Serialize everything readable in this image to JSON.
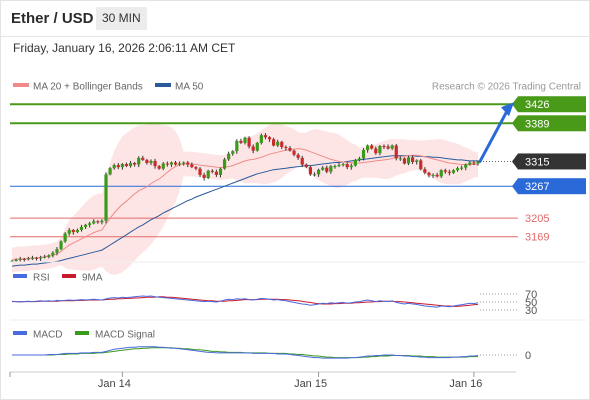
{
  "header": {
    "title": "Ether / USD",
    "interval": "30 MIN",
    "timestamp": "Friday, January 16, 2026 2:06:11 AM CET"
  },
  "legend": {
    "ma20_label": "MA 20 + Bollinger Bands",
    "ma50_label": "MA 50",
    "credit": "Research © 2026 Trading Central",
    "rsi_label": "RSI",
    "rsi_ma_label": "9MA",
    "macd_label": "MACD",
    "macd_signal_label": "MACD Signal"
  },
  "colors": {
    "ma20": "#f08a8a",
    "ma50": "#2a5a9a",
    "bollinger_fill": "#fde0e0",
    "resistance": "#4a9a1a",
    "pivot": "#2a6ad8",
    "support": "#e36a6a",
    "current": "#333333",
    "rsi": "#4a6ae0",
    "rsi_ma": "#c81a2a",
    "macd": "#4a6ae0",
    "macd_signal": "#3a9a1a",
    "candle_up": "#3a9a1a",
    "candle_down": "#c82a2a"
  },
  "chart_data": [
    {
      "type": "candlestick",
      "title": "Ether / USD",
      "x_tick_labels": [
        "Jan 14",
        "Jan 15",
        "Jan 16"
      ],
      "levels": [
        {
          "value": 3426,
          "label": "3426",
          "kind": "resistance"
        },
        {
          "value": 3389,
          "label": "3389",
          "kind": "resistance"
        },
        {
          "value": 3315,
          "label": "3315",
          "kind": "current"
        },
        {
          "value": 3267,
          "label": "3267",
          "kind": "pivot"
        },
        {
          "value": 3205,
          "label": "3205",
          "kind": "support"
        },
        {
          "value": 3169,
          "label": "3169",
          "kind": "support"
        }
      ],
      "forecast_arrow": {
        "from": 3315,
        "to": 3426,
        "direction": "up"
      },
      "ylim": [
        3120,
        3440
      ],
      "close": [
        3122,
        3124,
        3126,
        3125,
        3127,
        3128,
        3127,
        3129,
        3130,
        3133,
        3138,
        3145,
        3160,
        3175,
        3182,
        3178,
        3182,
        3188,
        3192,
        3195,
        3199,
        3197,
        3200,
        3290,
        3302,
        3308,
        3304,
        3310,
        3306,
        3312,
        3309,
        3322,
        3318,
        3312,
        3316,
        3306,
        3301,
        3311,
        3309,
        3313,
        3309,
        3311,
        3313,
        3309,
        3304,
        3301,
        3289,
        3283,
        3297,
        3295,
        3289,
        3301,
        3319,
        3330,
        3335,
        3355,
        3351,
        3361,
        3344,
        3336,
        3351,
        3366,
        3362,
        3358,
        3346,
        3353,
        3343,
        3341,
        3336,
        3328,
        3322,
        3309,
        3304,
        3290,
        3290,
        3299,
        3303,
        3295,
        3306,
        3306,
        3308,
        3310,
        3304,
        3307,
        3318,
        3321,
        3337,
        3346,
        3340,
        3331,
        3345,
        3344,
        3340,
        3346,
        3321,
        3321,
        3311,
        3323,
        3314,
        3317,
        3300,
        3293,
        3288,
        3289,
        3286,
        3298,
        3295,
        3293,
        3298,
        3302,
        3303,
        3309,
        3313,
        3311,
        3315
      ],
      "ma20": [
        3124,
        3125,
        3126,
        3126,
        3127,
        3128,
        3128,
        3129,
        3130,
        3131,
        3133,
        3136,
        3141,
        3147,
        3153,
        3157,
        3161,
        3165,
        3169,
        3173,
        3177,
        3180,
        3182,
        3194,
        3205,
        3215,
        3224,
        3232,
        3238,
        3245,
        3252,
        3258,
        3262,
        3266,
        3272,
        3277,
        3281,
        3287,
        3294,
        3300,
        3305,
        3309,
        3310,
        3310,
        3310,
        3309,
        3308,
        3307,
        3306,
        3305,
        3304,
        3303,
        3304,
        3305,
        3307,
        3310,
        3313,
        3316,
        3318,
        3319,
        3321,
        3323,
        3326,
        3329,
        3331,
        3333,
        3335,
        3337,
        3338,
        3339,
        3340,
        3339,
        3337,
        3334,
        3331,
        3328,
        3325,
        3322,
        3319,
        3317,
        3315,
        3314,
        3313,
        3313,
        3312,
        3312,
        3313,
        3314,
        3315,
        3316,
        3317,
        3318,
        3319,
        3321,
        3323,
        3324,
        3325,
        3326,
        3327,
        3327,
        3326,
        3324,
        3322,
        3320,
        3318,
        3316,
        3314,
        3312,
        3311,
        3310,
        3309,
        3309,
        3309,
        3309,
        3309
      ],
      "ma50": [
        3112,
        3113,
        3114,
        3114,
        3115,
        3116,
        3116,
        3117,
        3118,
        3119,
        3120,
        3121,
        3123,
        3125,
        3127,
        3129,
        3131,
        3133,
        3135,
        3137,
        3139,
        3141,
        3143,
        3148,
        3153,
        3158,
        3163,
        3168,
        3173,
        3178,
        3183,
        3188,
        3192,
        3197,
        3202,
        3206,
        3210,
        3215,
        3219,
        3223,
        3227,
        3231,
        3235,
        3239,
        3242,
        3246,
        3249,
        3252,
        3255,
        3258,
        3261,
        3264,
        3267,
        3270,
        3273,
        3276,
        3279,
        3282,
        3285,
        3288,
        3291,
        3293,
        3295,
        3297,
        3299,
        3300,
        3301,
        3302,
        3303,
        3304,
        3305,
        3306,
        3307,
        3307,
        3308,
        3309,
        3310,
        3311,
        3312,
        3313,
        3313,
        3314,
        3315,
        3316,
        3317,
        3318,
        3319,
        3320,
        3321,
        3322,
        3323,
        3324,
        3325,
        3326,
        3326,
        3326,
        3326,
        3326,
        3326,
        3325,
        3325,
        3324,
        3324,
        3323,
        3323,
        3322,
        3321,
        3320,
        3319,
        3318,
        3318,
        3317,
        3316,
        3316,
        3316
      ]
    },
    {
      "type": "line",
      "title": "RSI",
      "y_tick_labels": [
        "70",
        "50",
        "30"
      ],
      "ylim": [
        20,
        80
      ],
      "series": [
        {
          "name": "RSI",
          "values": [
            52,
            51,
            50,
            51,
            52,
            51,
            52,
            53,
            52,
            53,
            52,
            54,
            53,
            54,
            55,
            54,
            55,
            56,
            55,
            56,
            57,
            56,
            55,
            58,
            60,
            61,
            60,
            62,
            61,
            62,
            63,
            64,
            65,
            64,
            65,
            63,
            62,
            61,
            60,
            59,
            58,
            57,
            56,
            55,
            54,
            53,
            52,
            51,
            52,
            51,
            50,
            52,
            55,
            57,
            56,
            58,
            57,
            58,
            56,
            55,
            57,
            59,
            58,
            57,
            55,
            56,
            54,
            53,
            51,
            49,
            47,
            45,
            44,
            42,
            43,
            45,
            47,
            46,
            48,
            47,
            48,
            49,
            47,
            48,
            50,
            51,
            53,
            55,
            53,
            51,
            53,
            52,
            51,
            53,
            49,
            47,
            45,
            47,
            45,
            44,
            42,
            40,
            39,
            38,
            37,
            40,
            39,
            38,
            40,
            42,
            43,
            45,
            47,
            46,
            48
          ]
        },
        {
          "name": "9MA",
          "values": [
            51,
            51,
            51,
            51,
            51,
            51,
            51,
            52,
            52,
            52,
            52,
            52,
            53,
            53,
            53,
            53,
            54,
            54,
            54,
            55,
            55,
            55,
            55,
            56,
            57,
            57,
            58,
            58,
            59,
            59,
            60,
            60,
            61,
            62,
            62,
            62,
            63,
            63,
            62,
            62,
            61,
            60,
            59,
            58,
            57,
            56,
            55,
            54,
            53,
            53,
            52,
            52,
            52,
            53,
            53,
            54,
            55,
            56,
            56,
            56,
            56,
            57,
            57,
            57,
            57,
            57,
            56,
            56,
            55,
            54,
            53,
            52,
            50,
            49,
            47,
            46,
            45,
            45,
            45,
            46,
            46,
            47,
            47,
            47,
            48,
            48,
            49,
            50,
            50,
            51,
            51,
            52,
            52,
            52,
            51,
            51,
            50,
            49,
            48,
            47,
            46,
            45,
            44,
            43,
            42,
            41,
            40,
            40,
            39,
            39,
            40,
            41,
            42,
            43,
            44
          ]
        }
      ]
    },
    {
      "type": "line",
      "title": "MACD",
      "y_tick_labels": [
        "0"
      ],
      "ylim": [
        -25,
        25
      ],
      "series": [
        {
          "name": "MACD",
          "values": [
            0,
            0,
            0,
            0,
            0,
            0,
            0,
            0,
            0,
            1,
            1,
            1,
            2,
            3,
            3,
            3,
            3,
            4,
            4,
            4,
            5,
            5,
            5,
            7,
            9,
            11,
            12,
            13,
            14,
            15,
            15,
            16,
            16,
            16,
            16,
            16,
            15,
            15,
            14,
            13,
            13,
            12,
            11,
            10,
            9,
            8,
            7,
            6,
            5,
            5,
            4,
            4,
            4,
            4,
            4,
            4,
            4,
            4,
            4,
            3,
            3,
            3,
            3,
            3,
            3,
            2,
            2,
            2,
            1,
            0,
            -1,
            -2,
            -3,
            -4,
            -5,
            -5,
            -6,
            -6,
            -6,
            -6,
            -6,
            -6,
            -6,
            -5,
            -5,
            -4,
            -3,
            -2,
            -2,
            -1,
            -1,
            0,
            0,
            0,
            -1,
            -1,
            -2,
            -2,
            -3,
            -3,
            -4,
            -4,
            -5,
            -5,
            -5,
            -5,
            -5,
            -5,
            -4,
            -4,
            -3,
            -3,
            -2,
            -2,
            -1
          ]
        },
        {
          "name": "MACD Signal",
          "values": [
            0,
            0,
            0,
            0,
            0,
            0,
            0,
            0,
            0,
            0,
            0,
            1,
            1,
            1,
            2,
            2,
            2,
            3,
            3,
            3,
            3,
            4,
            4,
            5,
            6,
            7,
            8,
            9,
            10,
            11,
            12,
            12,
            13,
            13,
            14,
            14,
            14,
            14,
            14,
            14,
            13,
            13,
            12,
            12,
            11,
            10,
            10,
            9,
            8,
            7,
            7,
            6,
            6,
            5,
            5,
            5,
            5,
            4,
            4,
            4,
            4,
            4,
            4,
            3,
            3,
            3,
            3,
            3,
            2,
            2,
            1,
            1,
            0,
            -1,
            -2,
            -2,
            -3,
            -4,
            -4,
            -5,
            -5,
            -5,
            -5,
            -5,
            -5,
            -5,
            -4,
            -4,
            -3,
            -3,
            -2,
            -2,
            -2,
            -1,
            -1,
            -1,
            -1,
            -1,
            -2,
            -2,
            -2,
            -3,
            -3,
            -3,
            -4,
            -4,
            -4,
            -4,
            -4,
            -4,
            -4,
            -4,
            -3,
            -3,
            -3
          ]
        }
      ]
    }
  ]
}
